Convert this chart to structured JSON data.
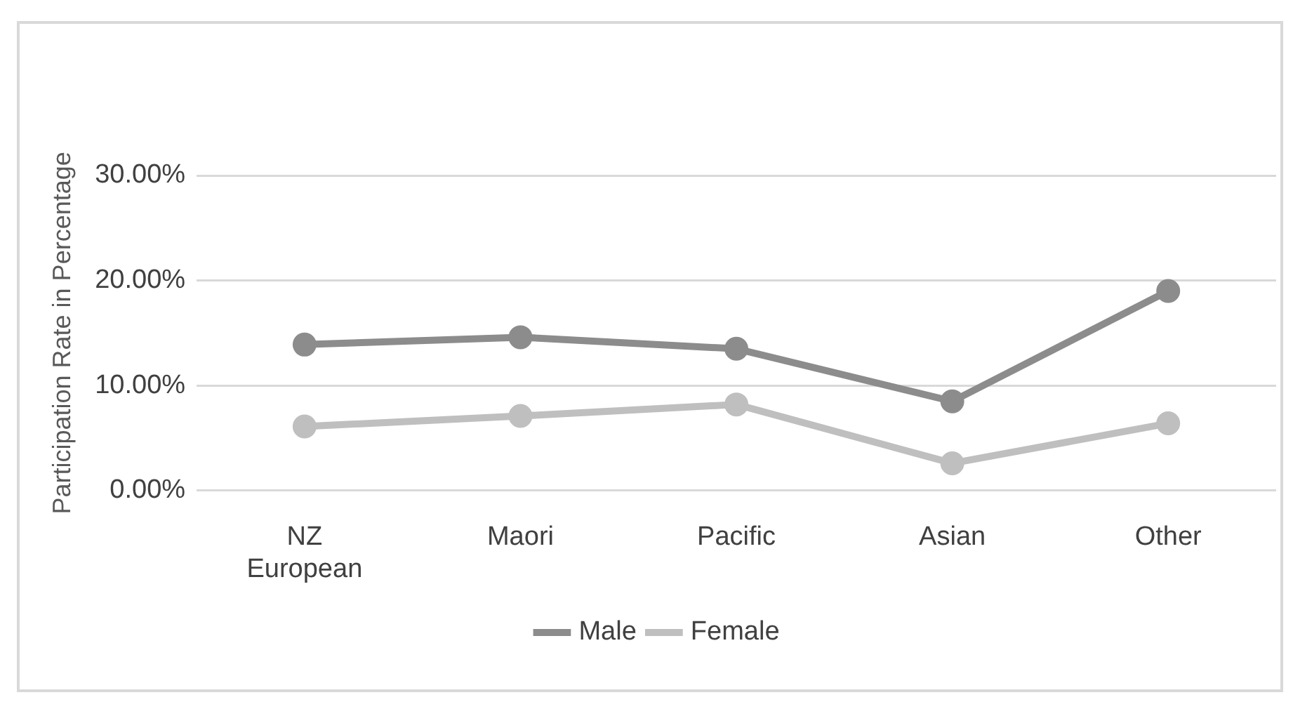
{
  "chart_data": {
    "type": "line",
    "ylabel": "Participation Rate in Percentage",
    "categories": [
      "NZ European",
      "Maori",
      "Pacific",
      "Asian",
      "Other"
    ],
    "series": [
      {
        "name": "Male",
        "color": "#8c8c8c",
        "values": [
          13.9,
          14.6,
          13.5,
          8.5,
          19.0
        ]
      },
      {
        "name": "Female",
        "color": "#bfbfbf",
        "values": [
          6.1,
          7.1,
          8.2,
          2.6,
          6.4
        ]
      }
    ],
    "ylim": [
      0,
      30
    ],
    "yticks": [
      {
        "value": 0,
        "label": "0.00%"
      },
      {
        "value": 10,
        "label": "10.00%"
      },
      {
        "value": 20,
        "label": "20.00%"
      },
      {
        "value": 30,
        "label": "30.00%"
      }
    ],
    "grid": "y",
    "legend": "bottom",
    "marker": "circle",
    "line_style": "solid"
  }
}
